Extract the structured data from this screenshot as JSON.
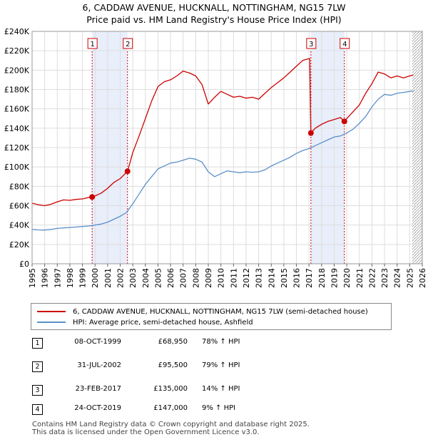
{
  "title": {
    "line1": "6, CADDAW AVENUE, HUCKNALL, NOTTINGHAM, NG15 7LW",
    "line2": "Price paid vs. HM Land Registry's House Price Index (HPI)"
  },
  "chart_data": {
    "type": "line",
    "xlim": [
      1995,
      2026
    ],
    "ylim": [
      0,
      240000
    ],
    "yticks": [
      0,
      20000,
      40000,
      60000,
      80000,
      100000,
      120000,
      140000,
      160000,
      180000,
      200000,
      220000,
      240000
    ],
    "ytick_labels": [
      "£0",
      "£20K",
      "£40K",
      "£60K",
      "£80K",
      "£100K",
      "£120K",
      "£140K",
      "£160K",
      "£180K",
      "£200K",
      "£220K",
      "£240K"
    ],
    "xticks": [
      1995,
      1996,
      1997,
      1998,
      1999,
      2000,
      2001,
      2002,
      2003,
      2004,
      2005,
      2006,
      2007,
      2008,
      2009,
      2010,
      2011,
      2012,
      2013,
      2014,
      2015,
      2016,
      2017,
      2018,
      2019,
      2020,
      2021,
      2022,
      2023,
      2024,
      2025,
      2026
    ],
    "xtick_labels": [
      "1995",
      "1996",
      "1997",
      "1998",
      "1999",
      "2000",
      "2001",
      "2002",
      "2003",
      "2004",
      "2005",
      "2006",
      "2007",
      "2008",
      "2009",
      "2010",
      "2011",
      "2012",
      "2013",
      "2014",
      "2015",
      "2016",
      "2017",
      "2018",
      "2019",
      "2020",
      "2021",
      "2022",
      "2023",
      "2024",
      "2025",
      "2026"
    ],
    "grid": true,
    "shaded_ranges": [
      [
        1999.77,
        2002.58
      ],
      [
        2017.15,
        2019.81
      ]
    ],
    "future_hatch_from": 2025.2,
    "series": [
      {
        "name": "6, CADDAW AVENUE, HUCKNALL, NOTTINGHAM, NG15 7LW (semi-detached house)",
        "color": "#cc0000",
        "x": [
          1995,
          1995.5,
          1996,
          1996.5,
          1997,
          1997.5,
          1998,
          1998.5,
          1999,
          1999.5,
          1999.77,
          2000,
          2000.5,
          2001,
          2001.5,
          2002,
          2002.58,
          2003,
          2003.5,
          2004,
          2004.5,
          2005,
          2005.5,
          2006,
          2006.5,
          2007,
          2007.5,
          2008,
          2008.5,
          2009,
          2009.5,
          2010,
          2010.5,
          2011,
          2011.5,
          2012,
          2012.5,
          2013,
          2013.5,
          2014,
          2014.5,
          2015,
          2015.5,
          2016,
          2016.5,
          2017.05,
          2017.15,
          2017.5,
          2018,
          2018.5,
          2019,
          2019.5,
          2019.81,
          2020,
          2020.5,
          2021,
          2021.5,
          2022,
          2022.5,
          2023,
          2023.5,
          2024,
          2024.5,
          2025,
          2025.3
        ],
        "y": [
          62500,
          61000,
          60000,
          61500,
          64000,
          66000,
          65500,
          66500,
          67000,
          68500,
          68950,
          70000,
          73000,
          78000,
          84000,
          88000,
          95500,
          115000,
          132000,
          150000,
          168000,
          183000,
          188000,
          190000,
          194000,
          199000,
          197000,
          194000,
          185000,
          165000,
          172000,
          178000,
          175000,
          172000,
          173000,
          171000,
          172000,
          170000,
          176000,
          182000,
          187000,
          192000,
          198000,
          204000,
          210000,
          212000,
          135000,
          140000,
          144000,
          147000,
          149000,
          151000,
          147000,
          150000,
          157000,
          164000,
          176000,
          186000,
          198000,
          196000,
          192000,
          194000,
          192000,
          194000,
          195000
        ]
      },
      {
        "name": "HPI: Average price, semi-detached house, Ashfield",
        "color": "#5b8fc9",
        "x": [
          1995,
          1995.5,
          1996,
          1996.5,
          1997,
          1997.5,
          1998,
          1998.5,
          1999,
          1999.5,
          2000,
          2000.5,
          2001,
          2001.5,
          2002,
          2002.5,
          2003,
          2003.5,
          2004,
          2004.5,
          2005,
          2005.5,
          2006,
          2006.5,
          2007,
          2007.5,
          2008,
          2008.5,
          2009,
          2009.5,
          2010,
          2010.5,
          2011,
          2011.5,
          2012,
          2012.5,
          2013,
          2013.5,
          2014,
          2014.5,
          2015,
          2015.5,
          2016,
          2016.5,
          2017,
          2017.5,
          2018,
          2018.5,
          2019,
          2019.5,
          2020,
          2020.5,
          2021,
          2021.5,
          2022,
          2022.5,
          2023,
          2023.5,
          2024,
          2024.5,
          2025,
          2025.3
        ],
        "y": [
          35500,
          35000,
          34800,
          35500,
          36500,
          37000,
          37500,
          38000,
          38500,
          39000,
          40000,
          41000,
          43000,
          46000,
          49000,
          53000,
          62000,
          72000,
          82000,
          90000,
          98000,
          101000,
          104000,
          105000,
          107000,
          109000,
          108000,
          105000,
          95000,
          90000,
          93000,
          96000,
          95000,
          94000,
          95000,
          94500,
          95000,
          97000,
          101000,
          104000,
          107000,
          110000,
          114000,
          117000,
          119000,
          122000,
          125000,
          128000,
          131000,
          132000,
          135000,
          139000,
          145000,
          152000,
          162000,
          170000,
          175000,
          174000,
          176000,
          177000,
          178000,
          178500
        ]
      }
    ],
    "sales": [
      {
        "label": "1",
        "x": 1999.77,
        "y": 68950
      },
      {
        "label": "2",
        "x": 2002.58,
        "y": 95500
      },
      {
        "label": "3",
        "x": 2017.15,
        "y": 135000
      },
      {
        "label": "4",
        "x": 2019.81,
        "y": 147000
      }
    ]
  },
  "legend": {
    "property_label": "6, CADDAW AVENUE, HUCKNALL, NOTTINGHAM, NG15 7LW (semi-detached house)",
    "hpi_label": "HPI: Average price, semi-detached house, Ashfield",
    "property_color": "#cc0000",
    "hpi_color": "#5b8fc9"
  },
  "sales_table": [
    {
      "num": "1",
      "date": "08-OCT-1999",
      "price": "£68,950",
      "hpi": "78% ↑ HPI"
    },
    {
      "num": "2",
      "date": "31-JUL-2002",
      "price": "£95,500",
      "hpi": "79% ↑ HPI"
    },
    {
      "num": "3",
      "date": "23-FEB-2017",
      "price": "£135,000",
      "hpi": "14% ↑ HPI"
    },
    {
      "num": "4",
      "date": "24-OCT-2019",
      "price": "£147,000",
      "hpi": "9% ↑ HPI"
    }
  ],
  "footer": {
    "line1": "Contains HM Land Registry data © Crown copyright and database right 2025.",
    "line2": "This data is licensed under the Open Government Licence v3.0."
  }
}
